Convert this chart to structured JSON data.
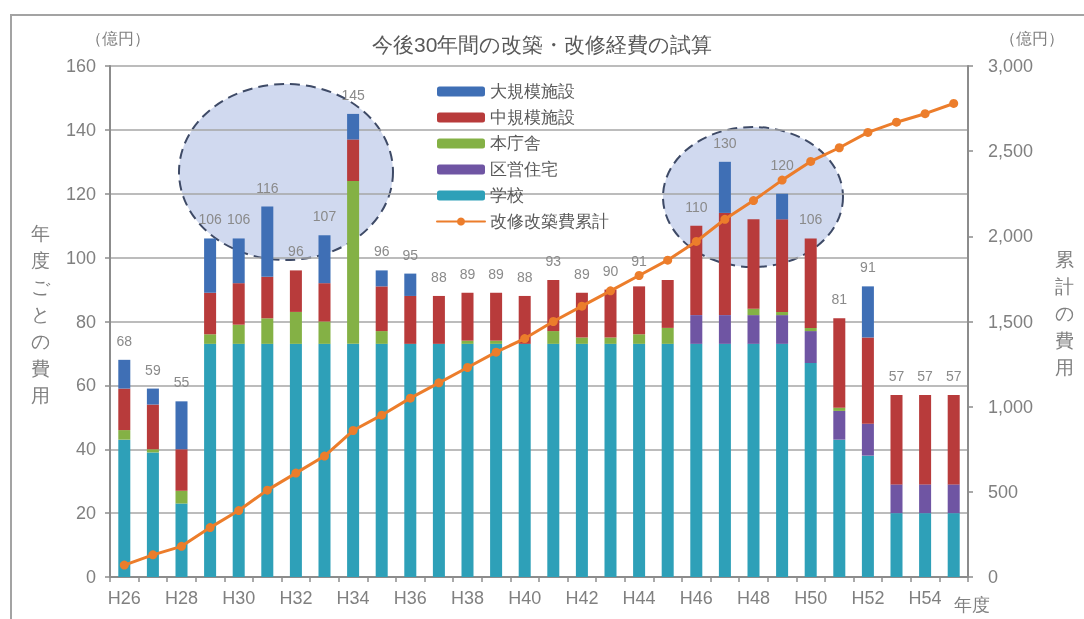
{
  "chart_data": {
    "type": "bar",
    "stacked": true,
    "title": "今後30年間の改築・改修経費の試算",
    "xlabel": "年度",
    "ylabel": "年度ごとの費用",
    "y2label": "累計の費用",
    "annotations": [
      "（億円）",
      "（億円）"
    ],
    "categories": [
      "H26",
      null,
      "H28",
      null,
      "H30",
      null,
      "H32",
      null,
      "H34",
      null,
      "H36",
      null,
      "H38",
      null,
      "H40",
      null,
      "H42",
      null,
      "H44",
      null,
      "H46",
      null,
      "H48",
      null,
      "H50",
      null,
      "H52",
      null,
      "H54",
      null
    ],
    "series": [
      {
        "name": "学校",
        "color": "#2ea0b8",
        "values": [
          43,
          39,
          23,
          73,
          73,
          73,
          73,
          73,
          73,
          73,
          73,
          73,
          73,
          73,
          73,
          73,
          73,
          73,
          73,
          73,
          73,
          73,
          73,
          73,
          67,
          43,
          38,
          20,
          20,
          20
        ]
      },
      {
        "name": "区営住宅",
        "color": "#6f55a3",
        "values": [
          0,
          0,
          0,
          0,
          0,
          0,
          0,
          0,
          0,
          0,
          0,
          0,
          0,
          0,
          0,
          0,
          0,
          0,
          0,
          0,
          9,
          9,
          9,
          9,
          10,
          9,
          10,
          9,
          9,
          9
        ]
      },
      {
        "name": "本庁舎",
        "color": "#84b145",
        "values": [
          3,
          1,
          4,
          3,
          6,
          8,
          10,
          7,
          51,
          4,
          0,
          0,
          1,
          1,
          0,
          4,
          2,
          2,
          3,
          5,
          0,
          0,
          2,
          1,
          1,
          1,
          0,
          0,
          0,
          0
        ]
      },
      {
        "name": "中規模施設",
        "color": "#b83b3b",
        "values": [
          13,
          14,
          13,
          13,
          13,
          13,
          13,
          12,
          13,
          14,
          15,
          15,
          15,
          15,
          15,
          16,
          14,
          15,
          15,
          15,
          28,
          32,
          28,
          29,
          28,
          28,
          27,
          28,
          28,
          28
        ]
      },
      {
        "name": "大規模施設",
        "color": "#3f6fb5",
        "values": [
          9,
          5,
          15,
          17,
          14,
          22,
          0,
          15,
          8,
          5,
          7,
          0,
          0,
          0,
          0,
          0,
          0,
          0,
          0,
          0,
          0,
          16,
          0,
          8,
          0,
          0,
          16,
          0,
          0,
          0
        ]
      },
      {
        "name": "改修改築費累計",
        "type": "line",
        "axis": "y2",
        "color": "#ec7d2b",
        "values": [
          70,
          130,
          180,
          290,
          390,
          510,
          610,
          710,
          860,
          950,
          1050,
          1140,
          1230,
          1320,
          1400,
          1500,
          1590,
          1680,
          1770,
          1860,
          1970,
          2100,
          2210,
          2330,
          2440,
          2520,
          2610,
          2670,
          2720,
          2780
        ]
      }
    ],
    "totals": [
      "68",
      "59",
      "55",
      "106",
      "106",
      "116",
      "96",
      "107",
      "145",
      "96",
      "95",
      "88",
      "89",
      "89",
      "88",
      "93",
      "89",
      "90",
      "91",
      null,
      "110",
      "130",
      null,
      "120",
      "106",
      "81",
      "91",
      "57",
      "57",
      "57"
    ],
    "ylim": [
      0,
      160
    ],
    "yticks": [
      0,
      20,
      40,
      60,
      80,
      100,
      120,
      140,
      160
    ],
    "y2lim": [
      0,
      3000
    ],
    "y2ticks": [
      0,
      500,
      {
        "value": 1000,
        "label": "1,000"
      },
      {
        "value": 1500,
        "label": "1,500"
      },
      {
        "value": 2000,
        "label": "2,000"
      },
      {
        "value": 2500,
        "label": "2,500"
      },
      {
        "value": 3000,
        "label": "3,000"
      }
    ],
    "grid": "y",
    "legend": "top",
    "marker": "circle"
  }
}
